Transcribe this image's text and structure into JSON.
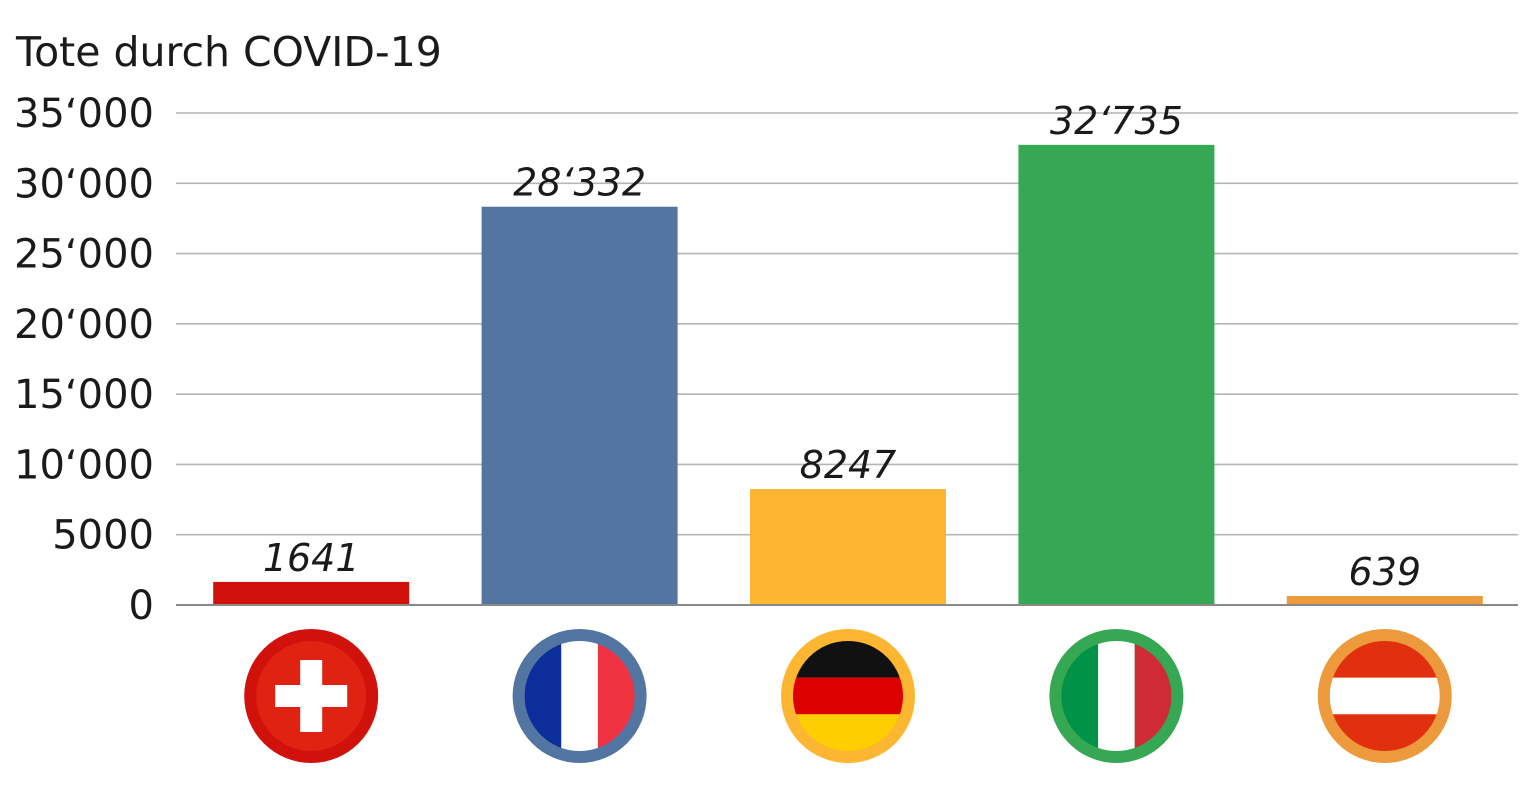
{
  "chart_data": {
    "type": "bar",
    "title": "Tote durch COVID-19",
    "xlabel": "",
    "ylabel": "",
    "ylim": [
      0,
      35000
    ],
    "yticks": [
      0,
      5000,
      10000,
      15000,
      20000,
      25000,
      30000,
      35000
    ],
    "ytick_labels": [
      "0",
      "5000",
      "10‘000",
      "15‘000",
      "20‘000",
      "25‘000",
      "30‘000",
      "35‘000"
    ],
    "grid": true,
    "legend": "none",
    "categories": [
      "Schweiz",
      "Frankreich",
      "Deutschland",
      "Italien",
      "Österreich"
    ],
    "category_icons": [
      "flag-switzerland-icon",
      "flag-france-icon",
      "flag-germany-icon",
      "flag-italy-icon",
      "flag-austria-icon"
    ],
    "values": [
      1641,
      28332,
      8247,
      32735,
      639
    ],
    "data_labels": [
      "1641",
      "28‘332",
      "8247",
      "32‘735",
      "639"
    ],
    "colors": [
      "#d0110c",
      "#5275a2",
      "#fdb631",
      "#36a853",
      "#ec9a3c"
    ]
  }
}
